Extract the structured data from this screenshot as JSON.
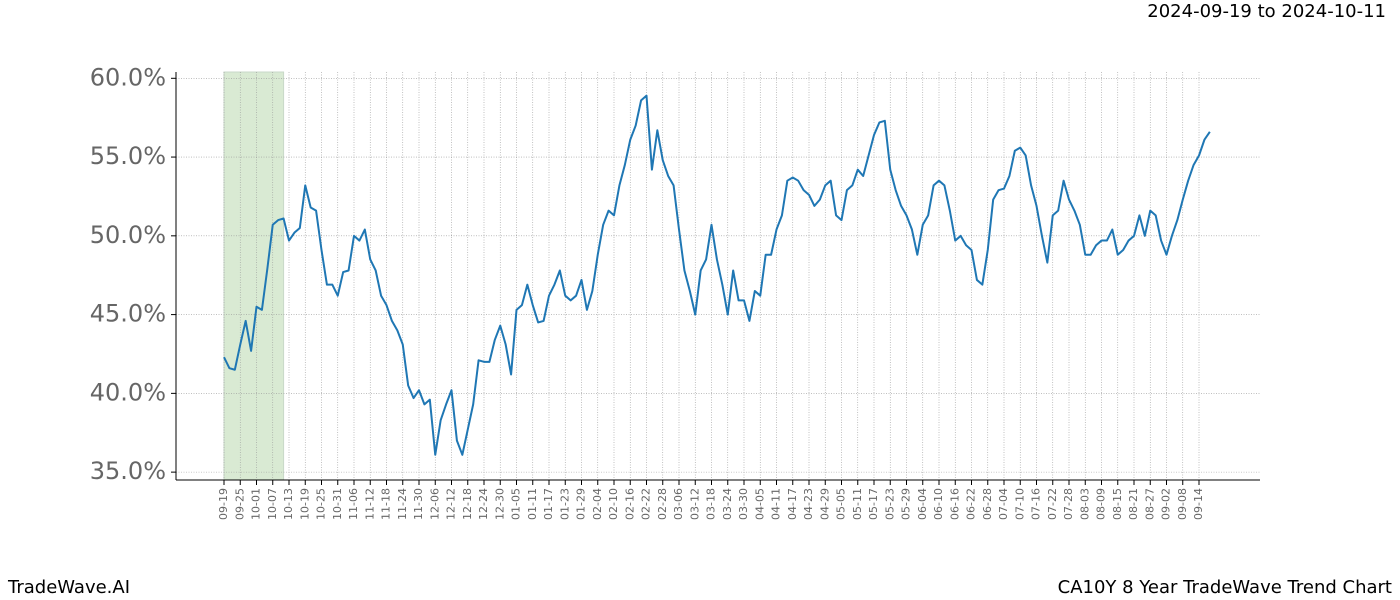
{
  "chart_data": {
    "type": "line",
    "title": "2024-09-19 to 2024-10-11",
    "source": "TradeWave.AI",
    "caption": "CA10Y 8 Year TradeWave Trend Chart",
    "color": "#1f77b4",
    "highlight": {
      "start": 0,
      "end": 11,
      "color": "#d9ead3"
    },
    "grid": true,
    "ylim": [
      34.5,
      60.4
    ],
    "yticks": [
      {
        "value": 35,
        "label": "35.0%"
      },
      {
        "value": 40,
        "label": "40.0%"
      },
      {
        "value": 45,
        "label": "45.0%"
      },
      {
        "value": 50,
        "label": "50.0%"
      },
      {
        "value": 55,
        "label": "55.0%"
      },
      {
        "value": 60,
        "label": "60.0%"
      }
    ],
    "categories": [
      "09-19",
      null,
      null,
      "09-25",
      null,
      null,
      "10-01",
      null,
      null,
      "10-07",
      null,
      null,
      "10-13",
      null,
      null,
      "10-19",
      null,
      null,
      "10-25",
      null,
      null,
      "10-31",
      null,
      null,
      "11-06",
      null,
      null,
      "11-12",
      null,
      null,
      "11-18",
      null,
      null,
      "11-24",
      null,
      null,
      "11-30",
      null,
      null,
      "12-06",
      null,
      null,
      "12-12",
      null,
      null,
      "12-18",
      null,
      null,
      "12-24",
      null,
      null,
      "12-30",
      null,
      null,
      "01-05",
      null,
      null,
      "01-11",
      null,
      null,
      "01-17",
      null,
      null,
      "01-23",
      null,
      null,
      "01-29",
      null,
      null,
      "02-04",
      null,
      null,
      "02-10",
      null,
      null,
      "02-16",
      null,
      null,
      "02-22",
      null,
      null,
      "02-28",
      null,
      null,
      "03-06",
      null,
      null,
      "03-12",
      null,
      null,
      "03-18",
      null,
      null,
      "03-24",
      null,
      null,
      "03-30",
      null,
      null,
      "04-05",
      null,
      null,
      "04-11",
      null,
      null,
      "04-17",
      null,
      null,
      "04-23",
      null,
      null,
      "04-29",
      null,
      null,
      "05-05",
      null,
      null,
      "05-11",
      null,
      null,
      "05-17",
      null,
      null,
      "05-23",
      null,
      null,
      "05-29",
      null,
      null,
      "06-04",
      null,
      null,
      "06-10",
      null,
      null,
      "06-16",
      null,
      null,
      "06-22",
      null,
      null,
      "06-28",
      null,
      null,
      "07-04",
      null,
      null,
      "07-10",
      null,
      null,
      "07-16",
      null,
      null,
      "07-22",
      null,
      null,
      "07-28",
      null,
      null,
      "08-03",
      null,
      null,
      "08-09",
      null,
      null,
      "08-15",
      null,
      null,
      "08-21",
      null,
      null,
      "08-27",
      null,
      null,
      "09-02",
      null,
      null,
      "09-08",
      null,
      null,
      "09-14",
      null,
      null
    ],
    "values": [
      42.3,
      41.6,
      41.5,
      43.1,
      44.6,
      42.7,
      45.5,
      45.3,
      47.9,
      50.7,
      51.0,
      51.1,
      49.7,
      50.2,
      50.5,
      53.2,
      51.8,
      51.6,
      49.1,
      46.9,
      46.9,
      46.2,
      47.7,
      47.8,
      50.0,
      49.7,
      50.4,
      48.5,
      47.8,
      46.2,
      45.6,
      44.6,
      44.0,
      43.1,
      40.5,
      39.7,
      40.2,
      39.3,
      39.6,
      36.1,
      38.3,
      39.3,
      40.2,
      37.0,
      36.1,
      37.7,
      39.3,
      42.1,
      42.0,
      42.0,
      43.4,
      44.3,
      43.1,
      41.2,
      45.3,
      45.6,
      46.9,
      45.6,
      44.5,
      44.6,
      46.2,
      46.9,
      47.8,
      46.2,
      45.9,
      46.2,
      47.2,
      45.3,
      46.5,
      48.8,
      50.7,
      51.6,
      51.3,
      53.2,
      54.5,
      56.1,
      57.0,
      58.6,
      58.9,
      54.2,
      56.7,
      54.8,
      53.8,
      53.2,
      50.4,
      47.8,
      46.5,
      45.0,
      47.8,
      48.5,
      50.7,
      48.5,
      46.9,
      45.0,
      47.8,
      45.9,
      45.9,
      44.6,
      46.5,
      46.2,
      48.8,
      48.8,
      50.4,
      51.3,
      53.5,
      53.7,
      53.5,
      52.9,
      52.6,
      51.9,
      52.3,
      53.2,
      53.5,
      51.3,
      51.0,
      52.9,
      53.2,
      54.2,
      53.8,
      55.1,
      56.4,
      57.2,
      57.3,
      54.2,
      52.9,
      51.9,
      51.3,
      50.4,
      48.8,
      50.7,
      51.3,
      53.2,
      53.5,
      53.2,
      51.6,
      49.7,
      50.0,
      49.4,
      49.1,
      47.2,
      46.9,
      49.1,
      52.3,
      52.9,
      53.0,
      53.8,
      55.4,
      55.6,
      55.1,
      53.2,
      51.9,
      50.0,
      48.3,
      51.3,
      51.6,
      53.5,
      52.3,
      51.6,
      50.7,
      48.8,
      48.8,
      49.4,
      49.7,
      49.7,
      50.4,
      48.8,
      49.1,
      49.7,
      50.0,
      51.3,
      50.0,
      51.6,
      51.3,
      49.7,
      48.8,
      50.0,
      51.0,
      52.3,
      53.5,
      54.5,
      55.1,
      56.1,
      56.6
    ]
  }
}
